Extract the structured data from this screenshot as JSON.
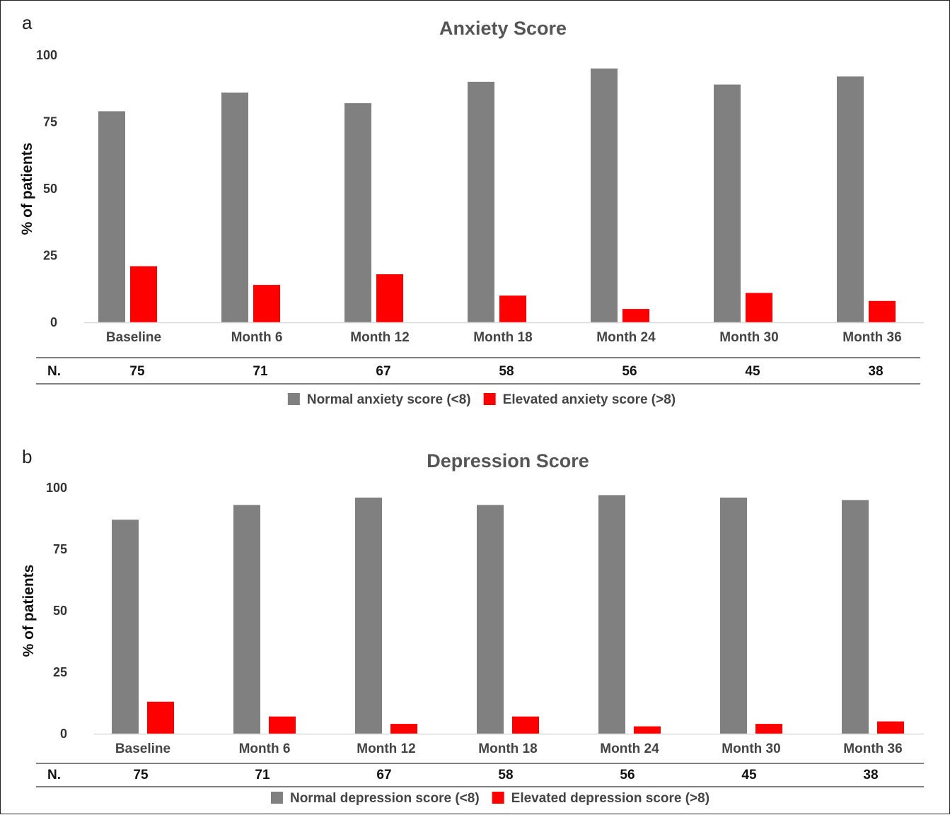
{
  "colors": {
    "normal": "#808080",
    "elevated": "#ff0000"
  },
  "chart_data": [
    {
      "type": "bar",
      "panel_letter": "a",
      "title": "Anxiety Score",
      "ylabel": "% of patients",
      "xlabel": "",
      "ylim": [
        0,
        100
      ],
      "yticks": [
        "0",
        "25",
        "50",
        "75",
        "100"
      ],
      "categories": [
        "Baseline",
        "Month 6",
        "Month 12",
        "Month 18",
        "Month 24",
        "Month 30",
        "Month 36"
      ],
      "series": [
        {
          "name": "Normal anxiety score (<8)",
          "values": [
            79,
            86,
            82,
            90,
            95,
            89,
            92
          ]
        },
        {
          "name": "Elevated anxiety score (>8)",
          "values": [
            21,
            14,
            18,
            10,
            5,
            11,
            8
          ]
        }
      ],
      "n_label": "N.",
      "n_values": [
        "75",
        "71",
        "67",
        "58",
        "56",
        "45",
        "38"
      ],
      "legend_position": "bottom-center",
      "grid": false
    },
    {
      "type": "bar",
      "panel_letter": "b",
      "title": "Depression Score",
      "ylabel": "% of patients",
      "xlabel": "",
      "ylim": [
        0,
        100
      ],
      "yticks": [
        "0",
        "25",
        "50",
        "75",
        "100"
      ],
      "categories": [
        "Baseline",
        "Month 6",
        "Month 12",
        "Month 18",
        "Month 24",
        "Month 30",
        "Month 36"
      ],
      "series": [
        {
          "name": "Normal depression score (<8)",
          "values": [
            87,
            93,
            96,
            93,
            97,
            96,
            95
          ]
        },
        {
          "name": "Elevated depression score (>8)",
          "values": [
            13,
            7,
            4,
            7,
            3,
            4,
            5
          ]
        }
      ],
      "n_label": "N.",
      "n_values": [
        "75",
        "71",
        "67",
        "58",
        "56",
        "45",
        "38"
      ],
      "legend_position": "bottom-center",
      "grid": false
    }
  ]
}
